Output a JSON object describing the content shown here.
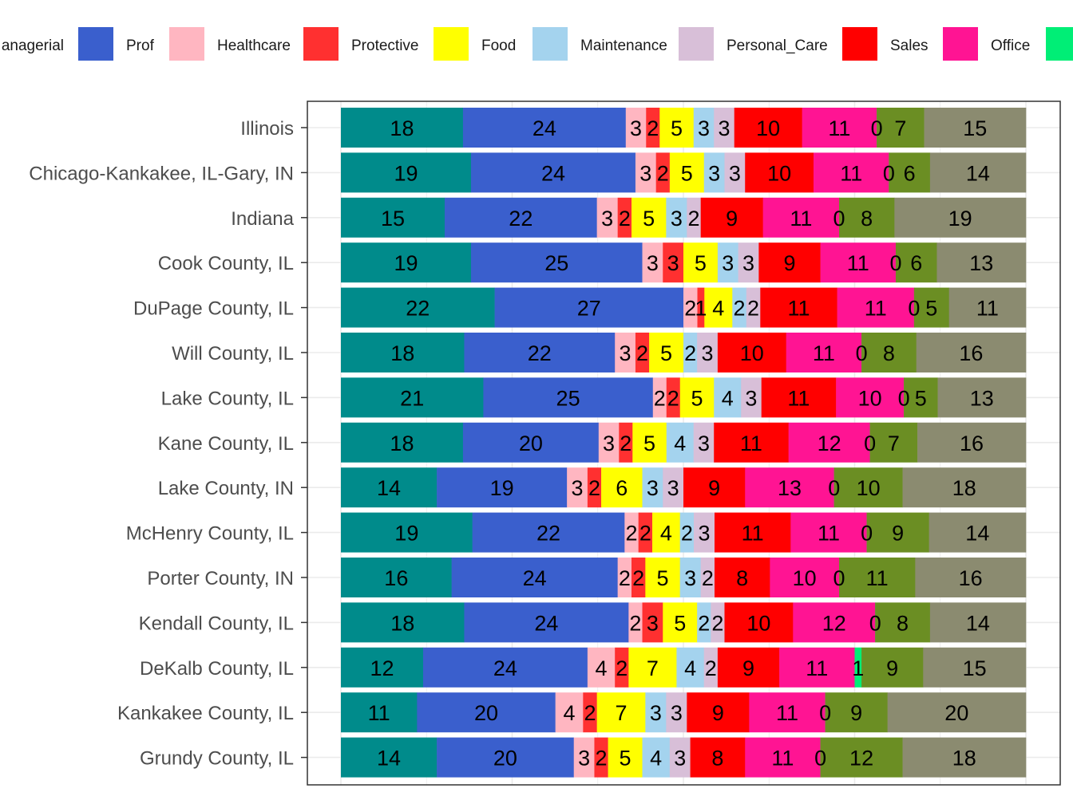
{
  "chart_data": {
    "type": "bar",
    "orientation": "horizontal",
    "stacked": true,
    "normalized": true,
    "title": "",
    "xlabel": "",
    "ylabel": "",
    "legend_position": "top",
    "grid": true,
    "categories": [
      "Illinois",
      "Chicago-Kankakee, IL-Gary, IN",
      "Indiana",
      "Cook County, IL",
      "DuPage County, IL",
      "Will County, IL",
      "Lake County, IL",
      "Kane County, IL",
      "Lake County, IN",
      "McHenry County, IL",
      "Porter County, IN",
      "Kendall County, IL",
      "DeKalb County, IL",
      "Kankakee County, IL",
      "Grundy County, IL"
    ],
    "series": [
      {
        "name": "Managerial",
        "color": "#008B8B",
        "values": [
          18,
          19,
          15,
          19,
          22,
          18,
          21,
          18,
          14,
          19,
          16,
          18,
          12,
          11,
          14
        ]
      },
      {
        "name": "Prof",
        "color": "#3A5FCD",
        "values": [
          24,
          24,
          22,
          25,
          27,
          22,
          25,
          20,
          19,
          22,
          24,
          24,
          24,
          20,
          20
        ]
      },
      {
        "name": "Healthcare",
        "color": "#FFB6C1",
        "values": [
          3,
          3,
          3,
          3,
          2,
          3,
          2,
          3,
          3,
          2,
          2,
          2,
          4,
          4,
          3
        ]
      },
      {
        "name": "Protective",
        "color": "#FF3030",
        "values": [
          2,
          2,
          2,
          3,
          1,
          2,
          2,
          2,
          2,
          2,
          2,
          3,
          2,
          2,
          2
        ]
      },
      {
        "name": "Food",
        "color": "#FFFF00",
        "values": [
          5,
          5,
          5,
          5,
          4,
          5,
          5,
          5,
          6,
          4,
          5,
          5,
          7,
          7,
          5
        ]
      },
      {
        "name": "Maintenance",
        "color": "#A4D3EE",
        "values": [
          3,
          3,
          3,
          3,
          2,
          2,
          4,
          4,
          3,
          2,
          3,
          2,
          4,
          3,
          4
        ]
      },
      {
        "name": "Personal_Care",
        "color": "#D8BFD8",
        "values": [
          3,
          3,
          2,
          3,
          2,
          3,
          3,
          3,
          3,
          3,
          2,
          2,
          2,
          3,
          3
        ]
      },
      {
        "name": "Sales",
        "color": "#FF0000",
        "values": [
          10,
          10,
          9,
          9,
          11,
          10,
          11,
          11,
          9,
          11,
          8,
          10,
          9,
          9,
          8
        ]
      },
      {
        "name": "Office",
        "color": "#FF1493",
        "values": [
          11,
          11,
          11,
          11,
          11,
          11,
          10,
          12,
          13,
          11,
          10,
          12,
          11,
          11,
          11
        ]
      },
      {
        "name": "",
        "color": "#00EE76",
        "values": [
          0,
          0,
          0,
          0,
          0,
          0,
          0,
          0,
          0,
          0,
          0,
          0,
          1,
          0,
          0
        ]
      },
      {
        "name": "",
        "color": "#6B8E23",
        "values": [
          7,
          6,
          8,
          6,
          5,
          8,
          5,
          7,
          10,
          9,
          11,
          8,
          9,
          9,
          12
        ]
      },
      {
        "name": "",
        "color": "#8B8B70",
        "values": [
          15,
          14,
          19,
          13,
          11,
          16,
          13,
          16,
          18,
          14,
          16,
          14,
          15,
          20,
          18
        ]
      }
    ],
    "legend_partial_label": "anagerial"
  }
}
